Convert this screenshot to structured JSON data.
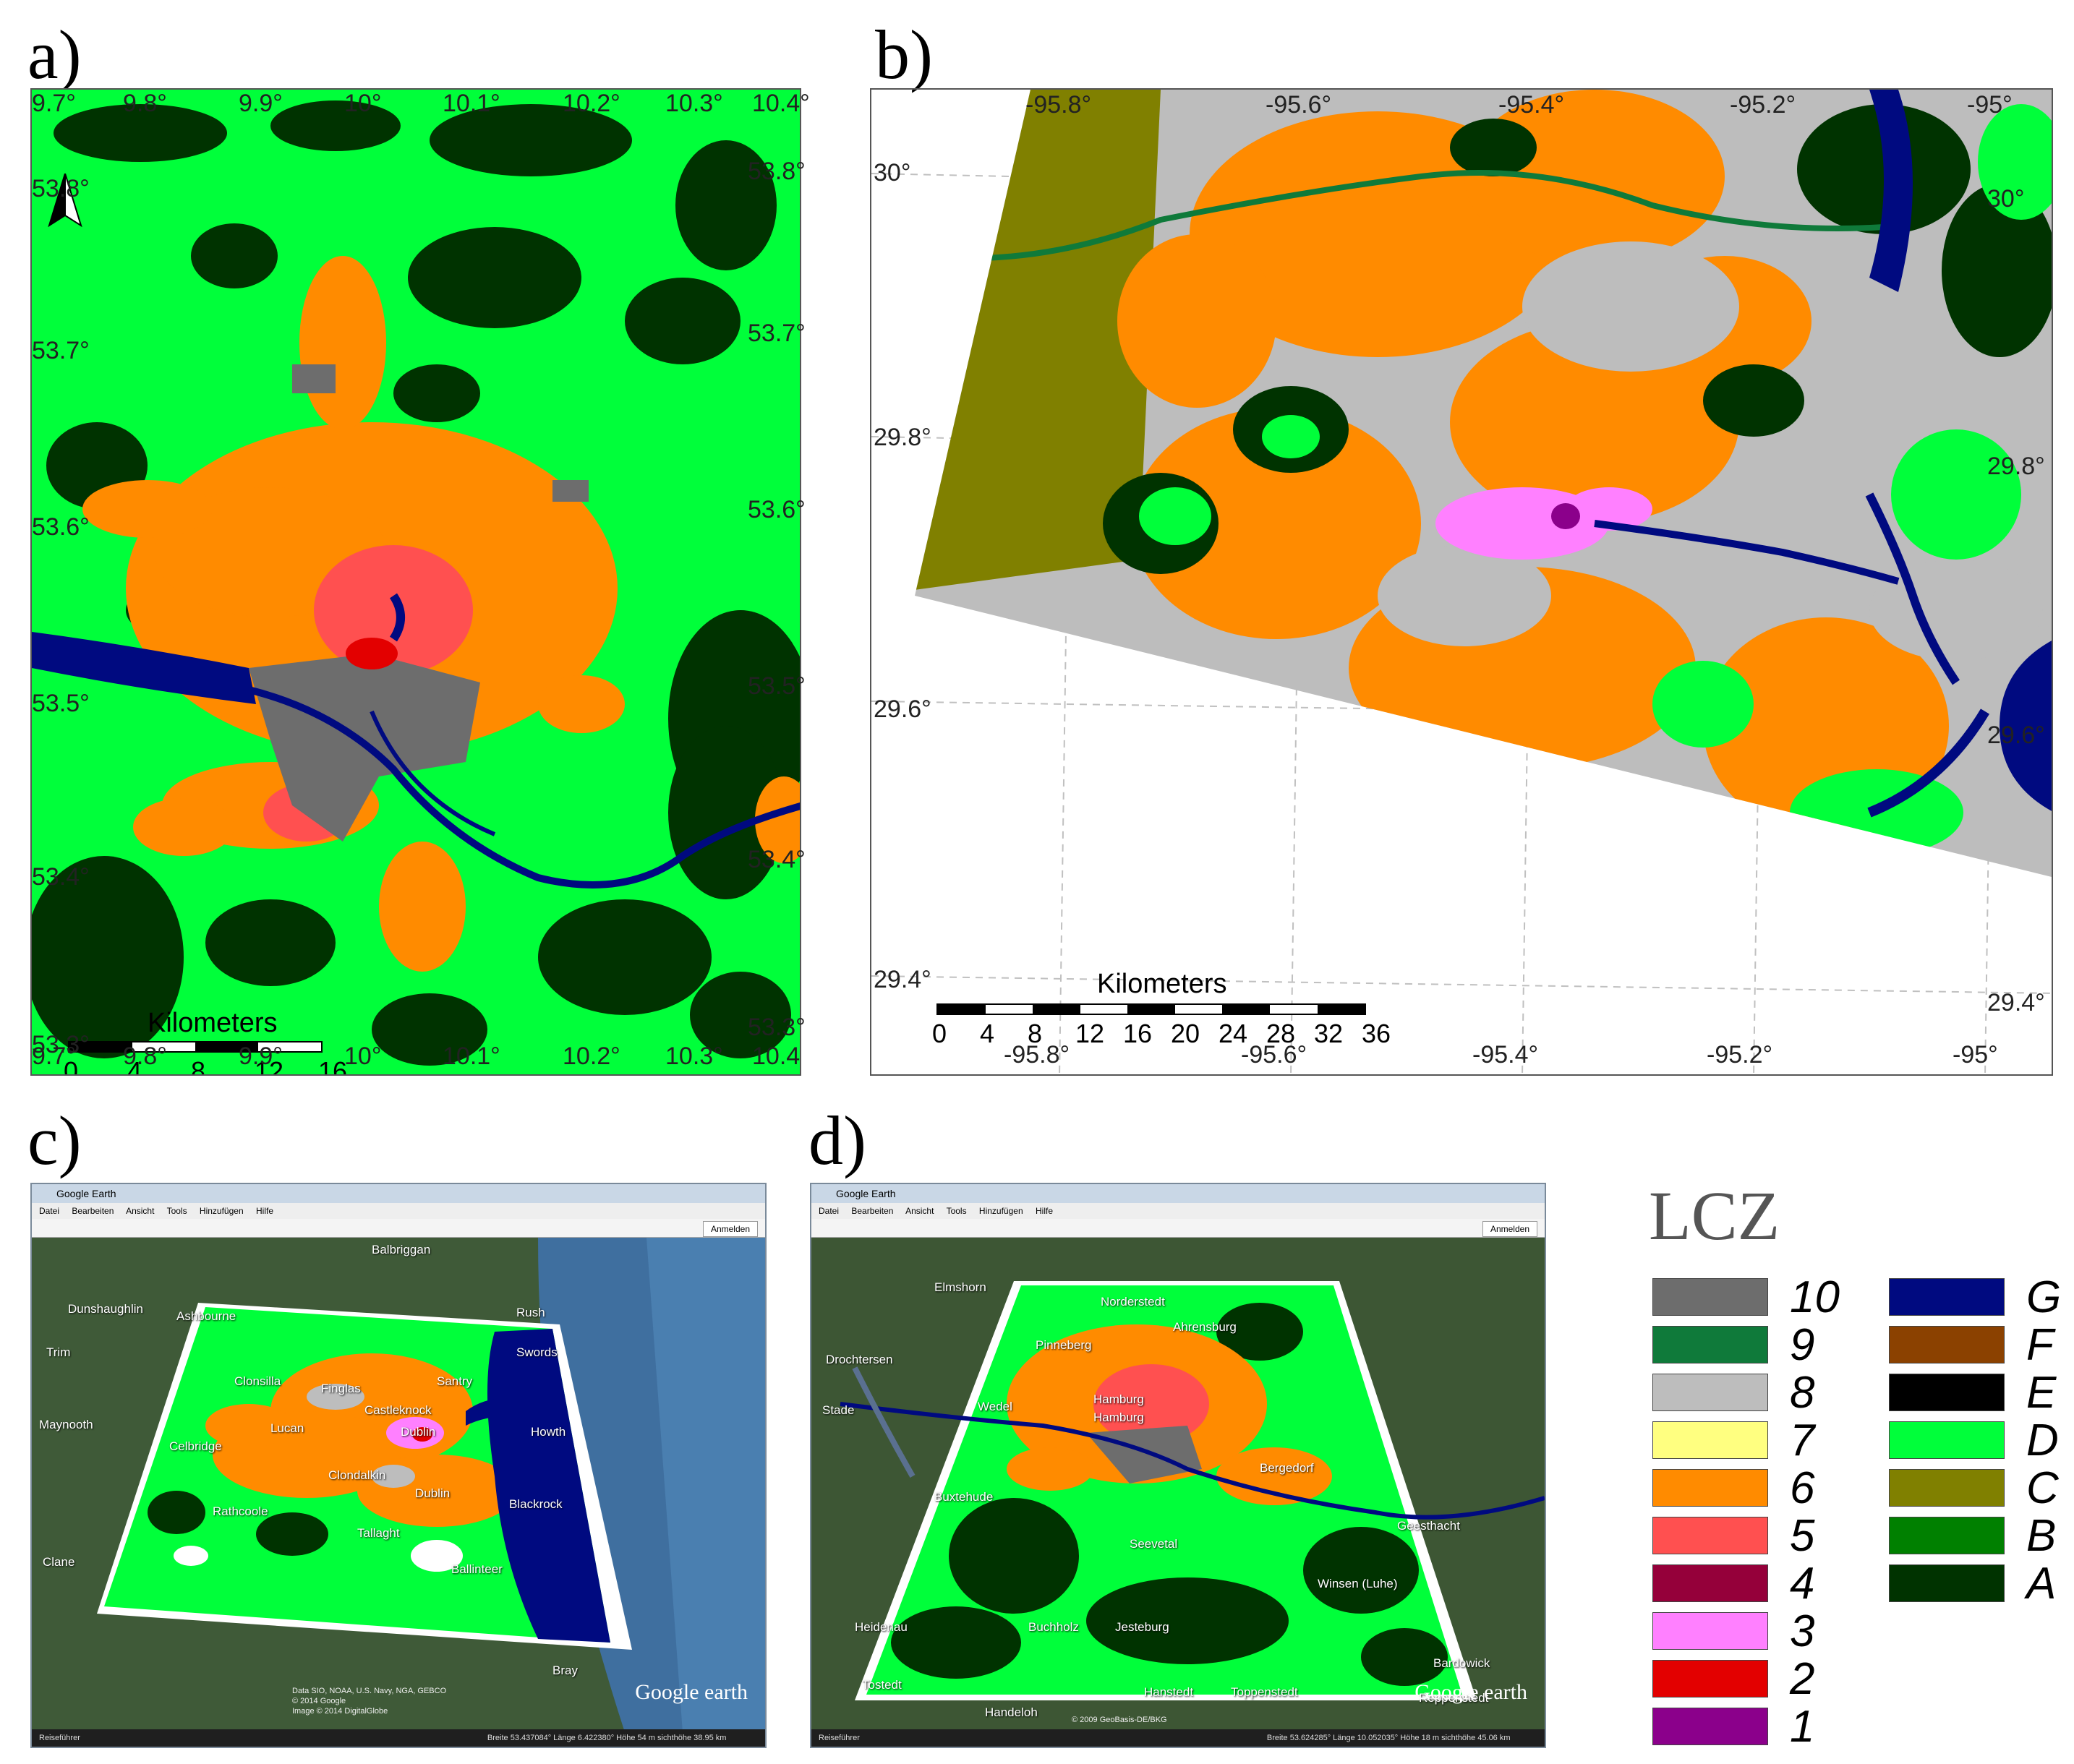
{
  "panels": {
    "a": {
      "label": "a)"
    },
    "b": {
      "label": "b)"
    },
    "c": {
      "label": "c)"
    },
    "d": {
      "label": "d)"
    }
  },
  "map_a": {
    "lon_ticks_top": [
      "9.7°",
      "9.8°",
      "9.9°",
      "10°",
      "10.1°",
      "10.2°",
      "10.3°",
      "10.4°"
    ],
    "lon_ticks_bottom": [
      "9.7°",
      "9.8°",
      "9.9°",
      "10°",
      "10.1°",
      "10.2°",
      "10.3°",
      "10.4"
    ],
    "lat_ticks_left": [
      "53.8°",
      "53.7°",
      "53.6°",
      "53.5°",
      "53.4°",
      "53.3°"
    ],
    "lat_ticks_right": [
      "53.8°",
      "53.7°",
      "53.6°",
      "53.5°",
      "53.4°",
      "53.3°"
    ],
    "scale": {
      "title": "Kilometers",
      "numbers": [
        "0",
        "4",
        "8",
        "12",
        "16"
      ]
    }
  },
  "map_b": {
    "lon_ticks_top": [
      "-95.8°",
      "-95.6°",
      "-95.4°",
      "-95.2°",
      "-95°"
    ],
    "lon_ticks_bottom": [
      "-95.8°",
      "-95.6°",
      "-95.4°",
      "-95.2°",
      "-95°"
    ],
    "lat_ticks_left": [
      "30°",
      "29.8°",
      "29.6°",
      "29.4°"
    ],
    "lat_ticks_right": [
      "30°",
      "29.8°",
      "29.6°",
      "29.4°"
    ],
    "scale": {
      "title": "Kilometers",
      "numbers": [
        "0",
        "4",
        "8",
        "12",
        "16",
        "20",
        "24",
        "28",
        "32",
        "36"
      ]
    }
  },
  "google_earth": {
    "window_title": "Google Earth",
    "menu": [
      "Datei",
      "Bearbeiten",
      "Ansicht",
      "Tools",
      "Hinzufügen",
      "Hilfe"
    ],
    "login_button": "Anmelden",
    "brand": "Google earth",
    "status_label": "Reiseführer",
    "c": {
      "status": "Breite 53.437084°  Länge  6.422380° Höhe  54 m    sichthöhe 38.95 km",
      "credits": [
        "Data SIO, NOAA, U.S. Navy, NGA, GEBCO",
        "© 2014 Google",
        "Image © 2014 DigitalGlobe"
      ],
      "places": [
        "Balbriggan",
        "Dunshaughlin",
        "Ashbourne",
        "Rush",
        "Trim",
        "Maynooth",
        "Swords",
        "Santry",
        "Clonsilla",
        "Finglas",
        "Castleknock",
        "Dublin",
        "Lucan",
        "Howth",
        "Celbridge",
        "Clondalkin",
        "Dublin",
        "Blackrock",
        "Rathcoole",
        "Tallaght",
        "Clane",
        "Ballinteer",
        "Bray"
      ]
    },
    "d": {
      "status": "Breite 53.624285°  Länge  10.052035° Höhe  18 m    sichthöhe 45.06 km",
      "credits": [
        "© 2009 GeoBasis-DE/BKG"
      ],
      "places": [
        "Elmshorn",
        "Norderstedt",
        "Ahrensburg",
        "Pinneberg",
        "Drochtersen",
        "Stade",
        "Wedel",
        "Hamburg",
        "Hamburg",
        "Bergedorf",
        "Buxtehude",
        "Geesthacht",
        "Seevetal",
        "Winsen (Luhe)",
        "Heidenau",
        "Buchholz",
        "Jesteburg",
        "Bardowick",
        "Tostedt",
        "Hanstedt",
        "Toppenstedt",
        "Handeloh",
        "Reppenstedt"
      ]
    }
  },
  "legend": {
    "title": "LCZ",
    "built": [
      {
        "label": "10",
        "color": "#6d6d6d"
      },
      {
        "label": "9",
        "color": "#0f7a3a"
      },
      {
        "label": "8",
        "color": "#bdbdbd"
      },
      {
        "label": "7",
        "color": "#ffff80"
      },
      {
        "label": "6",
        "color": "#ff8b00"
      },
      {
        "label": "5",
        "color": "#ff5050"
      },
      {
        "label": "4",
        "color": "#95003a"
      },
      {
        "label": "3",
        "color": "#ff80ff"
      },
      {
        "label": "2",
        "color": "#e30000"
      },
      {
        "label": "1",
        "color": "#8b008b"
      }
    ],
    "landcover": [
      {
        "label": "G",
        "color": "#000a80"
      },
      {
        "label": "F",
        "color": "#8b4100"
      },
      {
        "label": "E",
        "color": "#000000"
      },
      {
        "label": "D",
        "color": "#00ff3a"
      },
      {
        "label": "C",
        "color": "#808000"
      },
      {
        "label": "B",
        "color": "#008000"
      },
      {
        "label": "A",
        "color": "#003300"
      }
    ]
  }
}
